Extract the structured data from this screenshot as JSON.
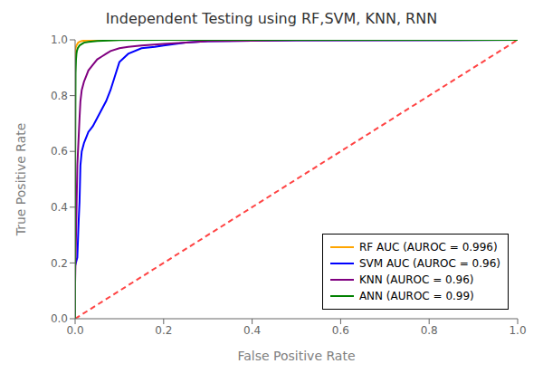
{
  "chart_data": {
    "type": "line",
    "title": "Independent Testing using RF,SVM, KNN, RNN",
    "xlabel": "False Positive Rate",
    "ylabel": "True Positive Rate",
    "xlim": [
      0.0,
      1.0
    ],
    "ylim": [
      0.0,
      1.0
    ],
    "xticks": [
      {
        "value": 0.0,
        "label": "0.0"
      },
      0.2,
      0.4,
      0.6,
      0.8,
      {
        "value": 1.0,
        "label": "1.0"
      }
    ],
    "yticks": [
      {
        "value": 0.0,
        "label": "0.0"
      },
      0.2,
      0.4,
      0.6,
      0.8,
      {
        "value": 1.0,
        "label": "1.0"
      }
    ],
    "grid": false,
    "legend": "lower right",
    "series": [
      {
        "color": "#FF4444",
        "line_style": "dashed",
        "x": [
          0,
          1
        ],
        "values": [
          0,
          1
        ]
      },
      {
        "name": "RF AUC (AUROC = 0.996)",
        "color": "#FFA500",
        "x": [
          0.0,
          0.0,
          0.001,
          0.002,
          0.003,
          0.005,
          0.007,
          0.01,
          0.015,
          0.02,
          0.03,
          0.05,
          0.1,
          0.2,
          0.5,
          1.0
        ],
        "values": [
          0.0,
          0.95,
          0.97,
          0.975,
          0.98,
          0.985,
          0.99,
          0.993,
          0.996,
          0.997,
          0.998,
          0.999,
          1.0,
          1.0,
          1.0,
          1.0
        ]
      },
      {
        "name": "SVM AUC (AUROC = 0.96)",
        "color": "#0000FF",
        "x": [
          0.0,
          0.0,
          0.005,
          0.008,
          0.01,
          0.012,
          0.015,
          0.02,
          0.025,
          0.03,
          0.035,
          0.04,
          0.05,
          0.06,
          0.07,
          0.08,
          0.09,
          0.1,
          0.12,
          0.15,
          0.18,
          0.2,
          0.25,
          0.3,
          0.5,
          1.0
        ],
        "values": [
          0.0,
          0.19,
          0.22,
          0.35,
          0.42,
          0.55,
          0.6,
          0.63,
          0.65,
          0.67,
          0.68,
          0.69,
          0.72,
          0.75,
          0.78,
          0.82,
          0.87,
          0.92,
          0.95,
          0.97,
          0.975,
          0.98,
          0.99,
          0.995,
          0.998,
          1.0
        ]
      },
      {
        "name": "KNN (AUROC = 0.96)",
        "color": "#800080",
        "x": [
          0.0,
          0.0,
          0.005,
          0.008,
          0.01,
          0.012,
          0.015,
          0.02,
          0.025,
          0.03,
          0.04,
          0.05,
          0.06,
          0.07,
          0.08,
          0.1,
          0.12,
          0.15,
          0.2,
          0.25,
          0.3,
          0.5,
          1.0
        ],
        "values": [
          0.0,
          0.13,
          0.55,
          0.65,
          0.72,
          0.78,
          0.82,
          0.85,
          0.87,
          0.89,
          0.91,
          0.93,
          0.94,
          0.95,
          0.96,
          0.97,
          0.975,
          0.98,
          0.985,
          0.99,
          0.995,
          0.998,
          1.0
        ]
      },
      {
        "name": "ANN (AUROC = 0.99)",
        "color": "#008000",
        "x": [
          0.0,
          0.0,
          0.001,
          0.002,
          0.003,
          0.004,
          0.005,
          0.006,
          0.008,
          0.01,
          0.015,
          0.02,
          0.03,
          0.05,
          0.1,
          0.2,
          0.5,
          1.0
        ],
        "values": [
          0.0,
          0.48,
          0.88,
          0.93,
          0.95,
          0.96,
          0.965,
          0.97,
          0.975,
          0.98,
          0.985,
          0.99,
          0.993,
          0.996,
          0.999,
          1.0,
          1.0,
          1.0
        ]
      }
    ]
  }
}
